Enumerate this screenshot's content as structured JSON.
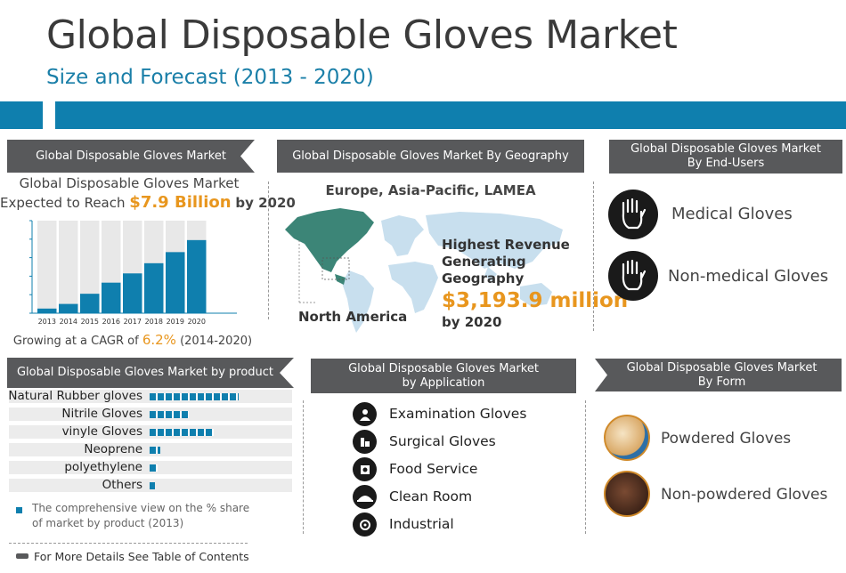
{
  "header": {
    "title": "Global Disposable Gloves Market",
    "subtitle": "Size and Forecast (2013 - 2020)"
  },
  "market_panel": {
    "header": "Global Disposable Gloves Market",
    "line1": "Global Disposable Gloves Market",
    "line2_prefix": "Expected to Reach",
    "line2_value": "$7.9 Billion",
    "line2_suffix": "by 2020",
    "cagr_prefix": "Growing at a CAGR of",
    "cagr_value": "6.2%",
    "cagr_suffix": "(2014-2020)"
  },
  "geo_panel": {
    "header": "Global Disposable Gloves Market By Geography",
    "regions": "Europe, Asia-Pacific, LAMEA",
    "map_label": "North America",
    "highest_l1": "Highest Revenue",
    "highest_l2": "Generating",
    "highest_l3": "Geography",
    "value": "$3,193.9 million",
    "by_year": "by 2020"
  },
  "enduser_panel": {
    "header_l1": "Global Disposable Gloves Market",
    "header_l2": "By End-Users",
    "items": [
      "Medical Gloves",
      "Non-medical Gloves"
    ]
  },
  "product_panel": {
    "header": "Global Disposable Gloves Market by product",
    "note": "The comprehensive view on the % share of market by product (2013)"
  },
  "application_panel": {
    "header_l1": "Global Disposable Gloves Market",
    "header_l2": "by Application",
    "items": [
      "Examination Gloves",
      "Surgical Gloves",
      "Food Service",
      "Clean Room",
      "Industrial"
    ]
  },
  "form_panel": {
    "header_l1": "Global Disposable Gloves Market",
    "header_l2": "By Form",
    "items": [
      "Powdered Gloves",
      "Non-powdered Gloves"
    ]
  },
  "footer": {
    "text": "For More Details See Table of Contents"
  },
  "colors": {
    "accent": "#0f7fae",
    "highlight": "#e8961e",
    "header_bg": "#58595b"
  },
  "chart_data": [
    {
      "type": "bar",
      "categories": [
        "2013",
        "2014",
        "2015",
        "2016",
        "2017",
        "2018",
        "2019",
        "2020"
      ],
      "values": [
        0.5,
        1.0,
        2.1,
        3.3,
        4.3,
        5.4,
        6.6,
        7.9
      ],
      "ylim": [
        0,
        10
      ],
      "grid": false
    },
    {
      "type": "bar",
      "orientation": "horizontal",
      "categories": [
        "Natural Rubber gloves",
        "Nitrile Gloves",
        "vinyle Gloves",
        "Neoprene",
        "polyethylene",
        "Others"
      ],
      "values": [
        100,
        44,
        72,
        12,
        9,
        6
      ]
    }
  ]
}
